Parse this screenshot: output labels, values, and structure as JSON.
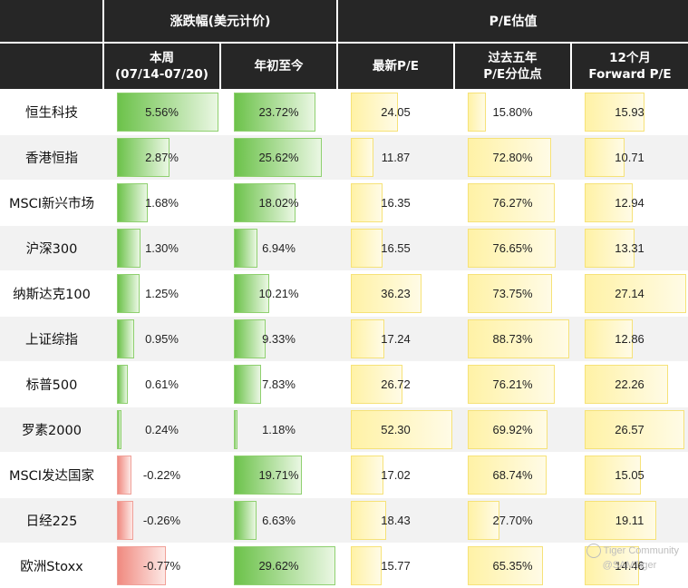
{
  "headers": {
    "group_change": "涨跌幅(美元计价)",
    "group_pe": "P/E估值",
    "week_line1": "本周",
    "week_line2": "(07/14-07/20)",
    "ytd": "年初至今",
    "pe_latest": "最新P/E",
    "pe_pct_line1": "过去五年",
    "pe_pct_line2": "P/E分位点",
    "fwd_line1": "12个月",
    "fwd_line2": "Forward P/E"
  },
  "rows": [
    {
      "name": "恒生科技",
      "week": "5.56%",
      "week_v": 5.56,
      "ytd": "23.72%",
      "ytd_v": 23.72,
      "pe": "24.05",
      "pe_v": 24.05,
      "pct": "15.80%",
      "pct_v": 15.8,
      "fwd": "15.93",
      "fwd_v": 15.93
    },
    {
      "name": "香港恒指",
      "week": "2.87%",
      "week_v": 2.87,
      "ytd": "25.62%",
      "ytd_v": 25.62,
      "pe": "11.87",
      "pe_v": 11.87,
      "pct": "72.80%",
      "pct_v": 72.8,
      "fwd": "10.71",
      "fwd_v": 10.71
    },
    {
      "name": "MSCI新兴市场",
      "week": "1.68%",
      "week_v": 1.68,
      "ytd": "18.02%",
      "ytd_v": 18.02,
      "pe": "16.35",
      "pe_v": 16.35,
      "pct": "76.27%",
      "pct_v": 76.27,
      "fwd": "12.94",
      "fwd_v": 12.94
    },
    {
      "name": "沪深300",
      "week": "1.30%",
      "week_v": 1.3,
      "ytd": "6.94%",
      "ytd_v": 6.94,
      "pe": "16.55",
      "pe_v": 16.55,
      "pct": "76.65%",
      "pct_v": 76.65,
      "fwd": "13.31",
      "fwd_v": 13.31
    },
    {
      "name": "纳斯达克100",
      "week": "1.25%",
      "week_v": 1.25,
      "ytd": "10.21%",
      "ytd_v": 10.21,
      "pe": "36.23",
      "pe_v": 36.23,
      "pct": "73.75%",
      "pct_v": 73.75,
      "fwd": "27.14",
      "fwd_v": 27.14
    },
    {
      "name": "上证综指",
      "week": "0.95%",
      "week_v": 0.95,
      "ytd": "9.33%",
      "ytd_v": 9.33,
      "pe": "17.24",
      "pe_v": 17.24,
      "pct": "88.73%",
      "pct_v": 88.73,
      "fwd": "12.86",
      "fwd_v": 12.86
    },
    {
      "name": "标普500",
      "week": "0.61%",
      "week_v": 0.61,
      "ytd": "7.83%",
      "ytd_v": 7.83,
      "pe": "26.72",
      "pe_v": 26.72,
      "pct": "76.21%",
      "pct_v": 76.21,
      "fwd": "22.26",
      "fwd_v": 22.26
    },
    {
      "name": "罗素2000",
      "week": "0.24%",
      "week_v": 0.24,
      "ytd": "1.18%",
      "ytd_v": 1.18,
      "pe": "52.30",
      "pe_v": 52.3,
      "pct": "69.92%",
      "pct_v": 69.92,
      "fwd": "26.57",
      "fwd_v": 26.57
    },
    {
      "name": "MSCI发达国家",
      "week": "-0.22%",
      "week_v": -0.22,
      "ytd": "19.71%",
      "ytd_v": 19.71,
      "pe": "17.02",
      "pe_v": 17.02,
      "pct": "68.74%",
      "pct_v": 68.74,
      "fwd": "15.05",
      "fwd_v": 15.05
    },
    {
      "name": "日经225",
      "week": "-0.26%",
      "week_v": -0.26,
      "ytd": "6.63%",
      "ytd_v": 6.63,
      "pe": "18.43",
      "pe_v": 18.43,
      "pct": "27.70%",
      "pct_v": 27.7,
      "fwd": "19.11",
      "fwd_v": 19.11
    },
    {
      "name": "欧洲Stoxx",
      "week": "-0.77%",
      "week_v": -0.77,
      "ytd": "29.62%",
      "ytd_v": 29.62,
      "pe": "15.77",
      "pe_v": 15.77,
      "pct": "65.35%",
      "pct_v": 65.35,
      "fwd": "14.46",
      "fwd_v": 14.46
    }
  ],
  "scale_max": {
    "week": 5.56,
    "ytd": 29.62,
    "pe": 52.3,
    "pct": 88.73,
    "fwd": 27.14
  },
  "colors": {
    "header_bg": "#262626",
    "positive": "#6cc24a",
    "negative": "#f08a80",
    "valuation": "#fff2a6",
    "stripe": "#f2f2f2"
  },
  "watermark": {
    "line1": "Tiger Community",
    "line2": "@SAMTiger",
    "icon": "tiger-logo-icon"
  }
}
